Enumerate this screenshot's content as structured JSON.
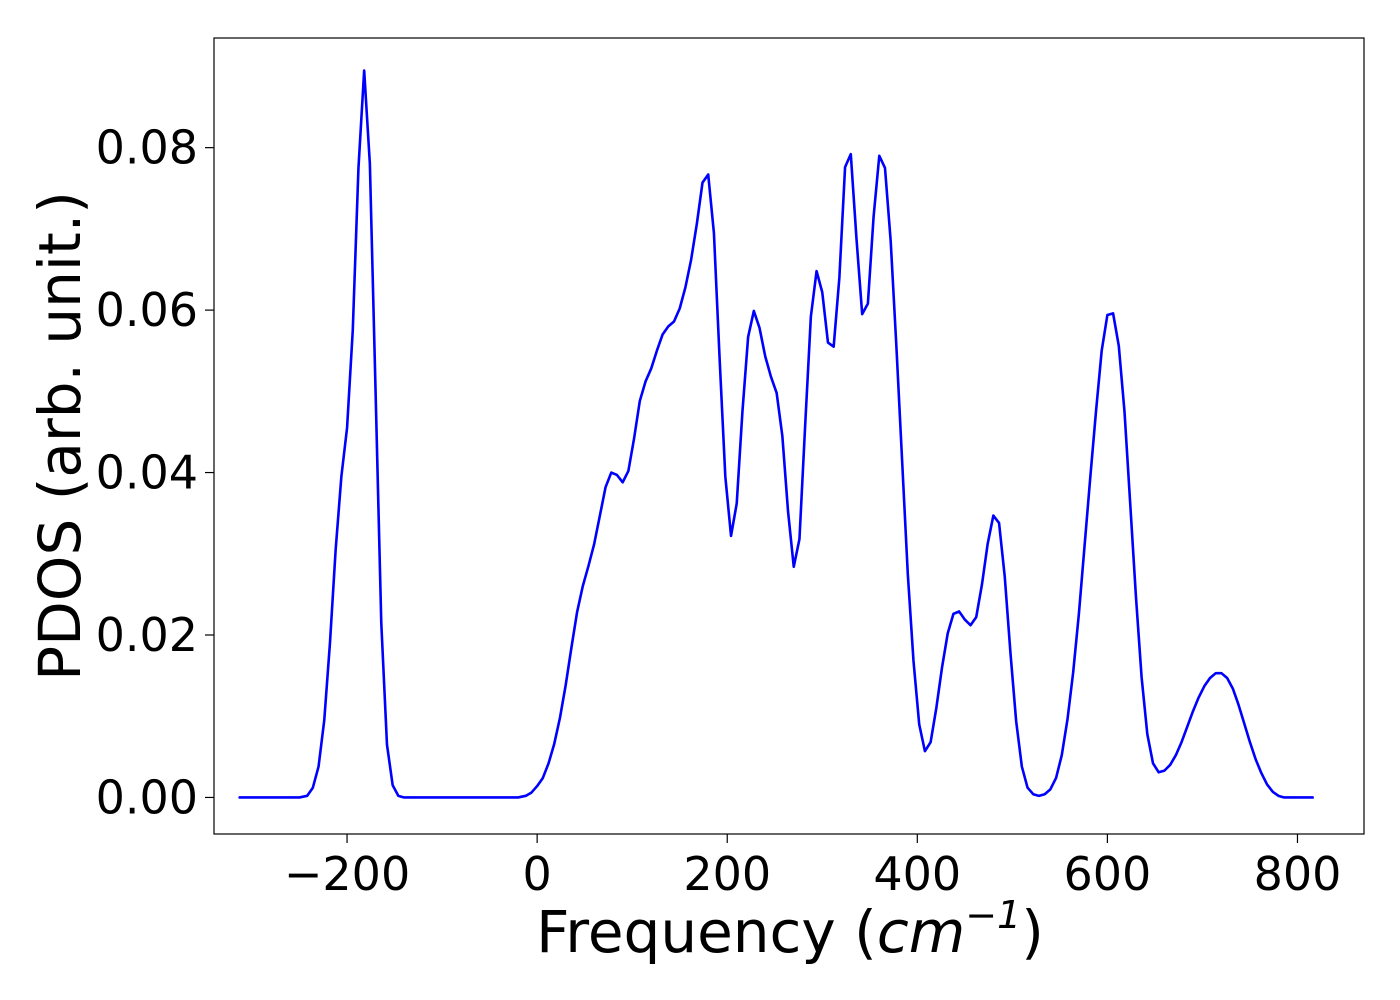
{
  "chart_data": {
    "type": "line",
    "title": "",
    "xlabel_prefix": "Frequency (",
    "xlabel_unit": "cm",
    "xlabel_exponent": "−1",
    "xlabel_suffix": ")",
    "ylabel": "PDOS (arb. unit.)",
    "xlim": [
      -340,
      870
    ],
    "ylim": [
      -0.0045,
      0.0935
    ],
    "xticks": [
      -200,
      0,
      200,
      400,
      600,
      800
    ],
    "xtick_labels": [
      "−200",
      "0",
      "200",
      "400",
      "600",
      "800"
    ],
    "yticks": [
      0.0,
      0.02,
      0.04,
      0.06,
      0.08
    ],
    "ytick_labels": [
      "0.00",
      "0.02",
      "0.04",
      "0.06",
      "0.08"
    ],
    "grid": false,
    "legend": "none",
    "series": [
      {
        "color": "#0000ff",
        "points": [
          [
            -313,
            0.0
          ],
          [
            -250,
            0.0
          ],
          [
            -242,
            0.0002
          ],
          [
            -236,
            0.0012
          ],
          [
            -230,
            0.0038
          ],
          [
            -224,
            0.0095
          ],
          [
            -218,
            0.019
          ],
          [
            -212,
            0.0305
          ],
          [
            -206,
            0.0395
          ],
          [
            -200,
            0.0455
          ],
          [
            -194,
            0.0575
          ],
          [
            -188,
            0.0775
          ],
          [
            -182,
            0.0895
          ],
          [
            -176,
            0.078
          ],
          [
            -170,
            0.05
          ],
          [
            -164,
            0.0215
          ],
          [
            -158,
            0.0065
          ],
          [
            -152,
            0.0015
          ],
          [
            -146,
            0.0002
          ],
          [
            -140,
            0.0
          ],
          [
            -20,
            0.0
          ],
          [
            -12,
            0.0002
          ],
          [
            -6,
            0.0006
          ],
          [
            0,
            0.0014
          ],
          [
            6,
            0.0024
          ],
          [
            12,
            0.0042
          ],
          [
            18,
            0.0066
          ],
          [
            24,
            0.0098
          ],
          [
            30,
            0.0138
          ],
          [
            36,
            0.0184
          ],
          [
            42,
            0.0228
          ],
          [
            48,
            0.026
          ],
          [
            54,
            0.0285
          ],
          [
            60,
            0.0312
          ],
          [
            66,
            0.0347
          ],
          [
            72,
            0.0382
          ],
          [
            78,
            0.04
          ],
          [
            84,
            0.0397
          ],
          [
            90,
            0.0388
          ],
          [
            96,
            0.0402
          ],
          [
            102,
            0.0442
          ],
          [
            108,
            0.0488
          ],
          [
            114,
            0.0512
          ],
          [
            120,
            0.0528
          ],
          [
            126,
            0.055
          ],
          [
            132,
            0.057
          ],
          [
            138,
            0.058
          ],
          [
            144,
            0.0586
          ],
          [
            150,
            0.0602
          ],
          [
            156,
            0.0628
          ],
          [
            162,
            0.0662
          ],
          [
            168,
            0.0706
          ],
          [
            174,
            0.0757
          ],
          [
            180,
            0.0767
          ],
          [
            186,
            0.0695
          ],
          [
            192,
            0.054
          ],
          [
            198,
            0.0395
          ],
          [
            204,
            0.0322
          ],
          [
            210,
            0.0362
          ],
          [
            216,
            0.0475
          ],
          [
            222,
            0.0567
          ],
          [
            228,
            0.0599
          ],
          [
            234,
            0.0578
          ],
          [
            240,
            0.0543
          ],
          [
            246,
            0.0518
          ],
          [
            252,
            0.0498
          ],
          [
            258,
            0.0445
          ],
          [
            264,
            0.0352
          ],
          [
            270,
            0.0284
          ],
          [
            276,
            0.0318
          ],
          [
            282,
            0.0458
          ],
          [
            288,
            0.0592
          ],
          [
            294,
            0.0648
          ],
          [
            300,
            0.0622
          ],
          [
            306,
            0.056
          ],
          [
            312,
            0.0555
          ],
          [
            318,
            0.064
          ],
          [
            324,
            0.0776
          ],
          [
            330,
            0.0792
          ],
          [
            336,
            0.0688
          ],
          [
            342,
            0.0595
          ],
          [
            348,
            0.0608
          ],
          [
            354,
            0.0715
          ],
          [
            360,
            0.079
          ],
          [
            366,
            0.0775
          ],
          [
            372,
            0.0685
          ],
          [
            378,
            0.0555
          ],
          [
            384,
            0.0415
          ],
          [
            390,
            0.0275
          ],
          [
            396,
            0.0168
          ],
          [
            402,
            0.009
          ],
          [
            408,
            0.0057
          ],
          [
            414,
            0.0068
          ],
          [
            420,
            0.011
          ],
          [
            426,
            0.016
          ],
          [
            432,
            0.0202
          ],
          [
            438,
            0.0226
          ],
          [
            444,
            0.0229
          ],
          [
            450,
            0.0219
          ],
          [
            456,
            0.0212
          ],
          [
            462,
            0.0222
          ],
          [
            468,
            0.0262
          ],
          [
            474,
            0.0312
          ],
          [
            480,
            0.0347
          ],
          [
            486,
            0.0338
          ],
          [
            492,
            0.0272
          ],
          [
            498,
            0.0178
          ],
          [
            504,
            0.0094
          ],
          [
            510,
            0.0038
          ],
          [
            516,
            0.0012
          ],
          [
            522,
            0.0004
          ],
          [
            528,
            0.0002
          ],
          [
            534,
            0.0004
          ],
          [
            540,
            0.001
          ],
          [
            546,
            0.0024
          ],
          [
            552,
            0.0052
          ],
          [
            558,
            0.0096
          ],
          [
            564,
            0.0154
          ],
          [
            570,
            0.0226
          ],
          [
            576,
            0.031
          ],
          [
            582,
            0.0394
          ],
          [
            588,
            0.0475
          ],
          [
            594,
            0.055
          ],
          [
            600,
            0.0594
          ],
          [
            606,
            0.0596
          ],
          [
            612,
            0.0556
          ],
          [
            618,
            0.0475
          ],
          [
            624,
            0.0362
          ],
          [
            630,
            0.0248
          ],
          [
            636,
            0.0148
          ],
          [
            642,
            0.0078
          ],
          [
            648,
            0.0042
          ],
          [
            654,
            0.0031
          ],
          [
            660,
            0.0033
          ],
          [
            666,
            0.004
          ],
          [
            672,
            0.0052
          ],
          [
            678,
            0.0068
          ],
          [
            684,
            0.0087
          ],
          [
            690,
            0.0106
          ],
          [
            696,
            0.0123
          ],
          [
            702,
            0.0137
          ],
          [
            708,
            0.0147
          ],
          [
            714,
            0.0153
          ],
          [
            720,
            0.0153
          ],
          [
            726,
            0.0147
          ],
          [
            732,
            0.0134
          ],
          [
            738,
            0.0114
          ],
          [
            744,
            0.0091
          ],
          [
            750,
            0.0068
          ],
          [
            756,
            0.0047
          ],
          [
            762,
            0.003
          ],
          [
            768,
            0.0016
          ],
          [
            774,
            0.0007
          ],
          [
            780,
            0.0002
          ],
          [
            786,
            0.0
          ],
          [
            816,
            0.0
          ]
        ]
      }
    ]
  }
}
